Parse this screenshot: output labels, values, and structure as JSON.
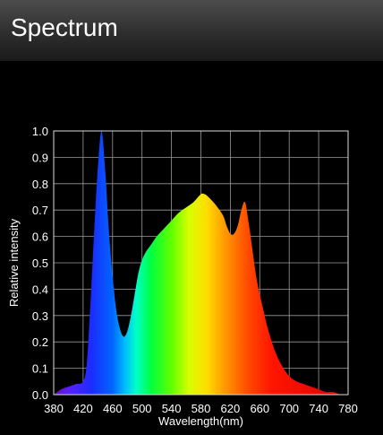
{
  "app": {
    "title": "Spectrum"
  },
  "chart_data": {
    "type": "area",
    "xlabel": "Wavelength(nm)",
    "ylabel": "Relative intensity",
    "xlim": [
      380,
      780
    ],
    "ylim": [
      0.0,
      1.0
    ],
    "x_ticks": [
      "380",
      "420",
      "460",
      "500",
      "540",
      "580",
      "620",
      "660",
      "700",
      "740",
      "780"
    ],
    "y_ticks": [
      "0.0",
      "0.1",
      "0.2",
      "0.3",
      "0.4",
      "0.5",
      "0.6",
      "0.7",
      "0.8",
      "0.9",
      "1.0"
    ],
    "grid": true,
    "fill": "visible-spectrum-gradient",
    "x": [
      380,
      390,
      400,
      410,
      420,
      425,
      430,
      435,
      440,
      445,
      450,
      455,
      460,
      465,
      470,
      475,
      480,
      485,
      490,
      495,
      500,
      505,
      510,
      515,
      520,
      530,
      540,
      550,
      560,
      570,
      580,
      585,
      590,
      600,
      610,
      615,
      620,
      625,
      630,
      635,
      640,
      645,
      650,
      655,
      660,
      665,
      670,
      680,
      690,
      700,
      710,
      720,
      730,
      740,
      750,
      760,
      770,
      780
    ],
    "values": [
      0.0,
      0.02,
      0.03,
      0.04,
      0.05,
      0.12,
      0.35,
      0.62,
      0.86,
      1.0,
      0.85,
      0.62,
      0.45,
      0.32,
      0.25,
      0.22,
      0.24,
      0.3,
      0.38,
      0.46,
      0.51,
      0.54,
      0.56,
      0.58,
      0.6,
      0.63,
      0.66,
      0.69,
      0.71,
      0.73,
      0.76,
      0.76,
      0.75,
      0.72,
      0.68,
      0.64,
      0.61,
      0.61,
      0.64,
      0.7,
      0.73,
      0.65,
      0.55,
      0.45,
      0.38,
      0.32,
      0.26,
      0.17,
      0.11,
      0.07,
      0.05,
      0.04,
      0.03,
      0.02,
      0.01,
      0.01,
      0.0,
      0.0
    ]
  }
}
